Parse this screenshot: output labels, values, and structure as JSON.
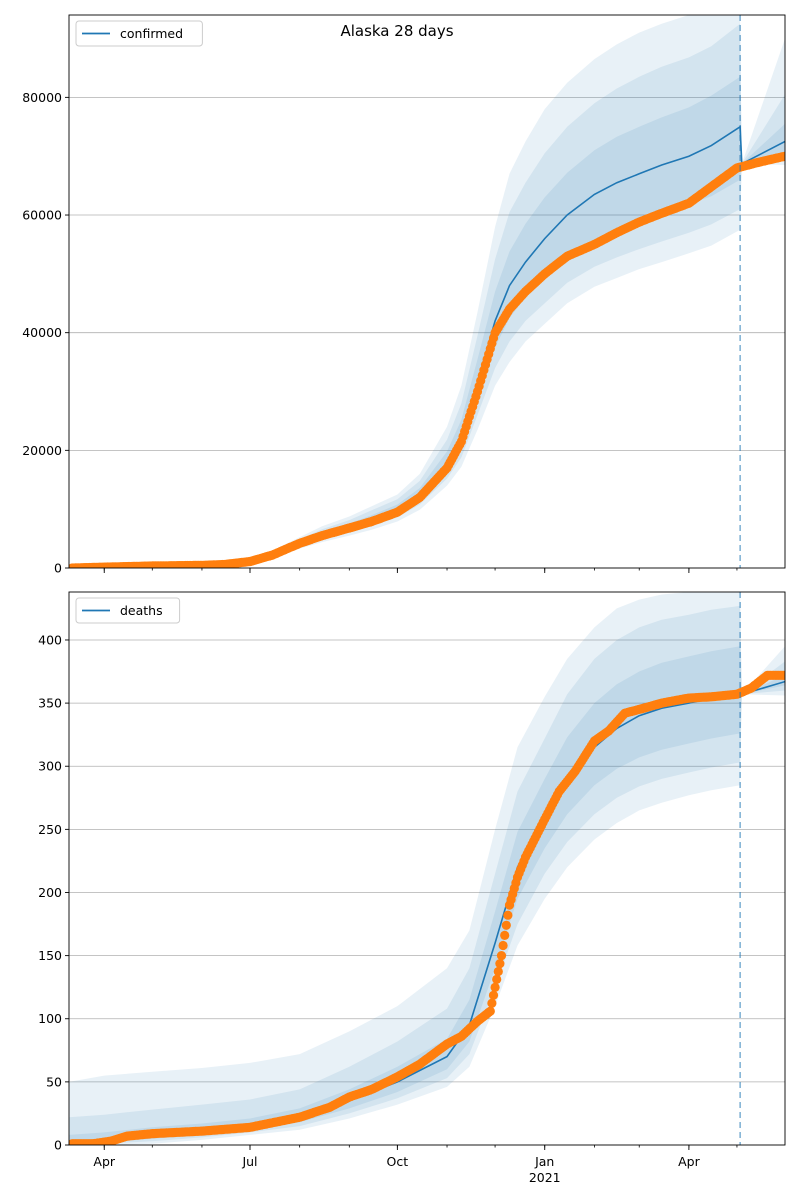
{
  "title": "Alaska 28 days",
  "colors": {
    "model_line": "#1f77b4",
    "observed_points": "#ff7f0e",
    "band": "#1f77b4",
    "grid": "#b0b0b0",
    "forecast_divider": "#1f77b4"
  },
  "chart_data": [
    {
      "type": "line",
      "legend": "confirmed",
      "legend_position": "top-left",
      "grid": "horizontal",
      "xlim": [
        "2020-03-10",
        "2021-05-31"
      ],
      "ylim": [
        0,
        94000
      ],
      "xticks": [
        {
          "date": "2020-04-01",
          "label": "Apr",
          "sub": ""
        },
        {
          "date": "2020-07-01",
          "label": "Jul",
          "sub": ""
        },
        {
          "date": "2020-10-01",
          "label": "Oct",
          "sub": ""
        },
        {
          "date": "2021-01-01",
          "label": "Jan",
          "sub": "2021"
        },
        {
          "date": "2021-04-01",
          "label": "Apr",
          "sub": ""
        }
      ],
      "yticks": [
        {
          "value": 0,
          "label": "0"
        },
        {
          "value": 20000,
          "label": "20000"
        },
        {
          "value": 40000,
          "label": "40000"
        },
        {
          "value": 60000,
          "label": "60000"
        },
        {
          "value": 80000,
          "label": "80000"
        }
      ],
      "forecast_start": "2021-05-03",
      "model": {
        "dates": [
          "2020-03-10",
          "2020-04-01",
          "2020-05-01",
          "2020-06-01",
          "2020-06-15",
          "2020-07-01",
          "2020-07-15",
          "2020-08-01",
          "2020-08-15",
          "2020-09-01",
          "2020-09-15",
          "2020-10-01",
          "2020-10-15",
          "2020-11-01",
          "2020-11-10",
          "2020-11-20",
          "2020-12-01",
          "2020-12-10",
          "2020-12-20",
          "2021-01-01",
          "2021-01-15",
          "2021-02-01",
          "2021-02-15",
          "2021-03-01",
          "2021-03-15",
          "2021-04-01",
          "2021-04-15",
          "2021-05-03",
          "2021-05-04",
          "2021-05-31"
        ],
        "mean": [
          0,
          150,
          300,
          420,
          550,
          1100,
          2200,
          4200,
          5600,
          7000,
          8300,
          10000,
          12500,
          17800,
          22500,
          31500,
          42000,
          48000,
          52000,
          56000,
          60000,
          63500,
          65500,
          67000,
          68500,
          70000,
          71800,
          75000,
          68700,
          72500
        ],
        "lo1": [
          0,
          130,
          270,
          380,
          500,
          1000,
          2000,
          3900,
          5200,
          6500,
          7700,
          9300,
          11600,
          16400,
          20500,
          28500,
          37500,
          42500,
          46000,
          49500,
          53000,
          55800,
          57500,
          59000,
          60300,
          61800,
          63200,
          66000,
          68700,
          70500
        ],
        "hi1": [
          0,
          170,
          330,
          460,
          600,
          1200,
          2450,
          4550,
          6100,
          7550,
          9000,
          10800,
          13600,
          19800,
          25200,
          35500,
          47000,
          53800,
          58500,
          63000,
          67200,
          71000,
          73300,
          75000,
          76600,
          78300,
          80300,
          83500,
          68700,
          75500
        ],
        "lo2": [
          0,
          110,
          240,
          340,
          450,
          900,
          1800,
          3600,
          4800,
          6000,
          7100,
          8600,
          10800,
          15200,
          18800,
          26000,
          34000,
          38500,
          42000,
          45000,
          48500,
          51200,
          52800,
          54200,
          55500,
          57000,
          58400,
          61000,
          68700,
          69200
        ],
        "hi2": [
          0,
          190,
          360,
          500,
          660,
          1300,
          2700,
          4900,
          6600,
          8150,
          9800,
          11700,
          14800,
          21800,
          28000,
          39500,
          52500,
          60500,
          65500,
          70500,
          75000,
          79000,
          81500,
          83500,
          85200,
          86800,
          88700,
          92500,
          68700,
          80500
        ],
        "lo3": [
          0,
          90,
          210,
          300,
          400,
          800,
          1600,
          3300,
          4400,
          5500,
          6500,
          7900,
          9900,
          14000,
          17200,
          23500,
          31000,
          35000,
          38500,
          41500,
          45000,
          47800,
          49300,
          50800,
          52000,
          53500,
          54800,
          57500,
          68700,
          68500
        ],
        "hi3": [
          0,
          210,
          390,
          540,
          720,
          1400,
          2950,
          5250,
          7100,
          8750,
          10500,
          12500,
          16000,
          24000,
          31000,
          43500,
          58000,
          67000,
          72500,
          78000,
          82500,
          86500,
          89000,
          91000,
          92500,
          94000,
          94000,
          94000,
          68700,
          90000
        ]
      },
      "observed": {
        "dates": [
          "2020-03-12",
          "2020-04-01",
          "2020-05-01",
          "2020-06-01",
          "2020-06-15",
          "2020-07-01",
          "2020-07-15",
          "2020-08-01",
          "2020-08-15",
          "2020-09-01",
          "2020-09-15",
          "2020-10-01",
          "2020-10-15",
          "2020-11-01",
          "2020-11-10",
          "2020-11-20",
          "2020-12-01",
          "2020-12-10",
          "2020-12-20",
          "2021-01-01",
          "2021-01-15",
          "2021-02-01",
          "2021-02-15",
          "2021-03-01",
          "2021-03-15",
          "2021-04-01",
          "2021-04-15",
          "2021-05-01",
          "2021-05-15",
          "2021-05-31"
        ],
        "values": [
          0,
          150,
          350,
          450,
          600,
          1100,
          2200,
          4200,
          5500,
          6800,
          7900,
          9500,
          12000,
          17000,
          21500,
          30000,
          40000,
          44000,
          47000,
          50000,
          53000,
          55000,
          57000,
          58800,
          60300,
          62000,
          64800,
          68000,
          69000,
          70000
        ]
      }
    },
    {
      "type": "line",
      "legend": "deaths",
      "legend_position": "top-left",
      "grid": "horizontal",
      "xlim": [
        "2020-03-10",
        "2021-05-31"
      ],
      "ylim": [
        0,
        438
      ],
      "xticks": [
        {
          "date": "2020-04-01",
          "label": "Apr",
          "sub": ""
        },
        {
          "date": "2020-07-01",
          "label": "Jul",
          "sub": ""
        },
        {
          "date": "2020-10-01",
          "label": "Oct",
          "sub": ""
        },
        {
          "date": "2021-01-01",
          "label": "Jan",
          "sub": "2021"
        },
        {
          "date": "2021-04-01",
          "label": "Apr",
          "sub": ""
        }
      ],
      "yticks": [
        {
          "value": 0,
          "label": "0"
        },
        {
          "value": 50,
          "label": "50"
        },
        {
          "value": 100,
          "label": "100"
        },
        {
          "value": 150,
          "label": "150"
        },
        {
          "value": 200,
          "label": "200"
        },
        {
          "value": 250,
          "label": "250"
        },
        {
          "value": 300,
          "label": "300"
        },
        {
          "value": 350,
          "label": "350"
        },
        {
          "value": 400,
          "label": "400"
        }
      ],
      "forecast_start": "2021-05-03",
      "model": {
        "dates": [
          "2020-03-10",
          "2020-04-01",
          "2020-05-01",
          "2020-06-01",
          "2020-07-01",
          "2020-08-01",
          "2020-09-01",
          "2020-10-01",
          "2020-11-01",
          "2020-11-15",
          "2020-12-01",
          "2020-12-15",
          "2021-01-01",
          "2021-01-15",
          "2021-02-01",
          "2021-02-15",
          "2021-03-01",
          "2021-03-15",
          "2021-04-01",
          "2021-04-15",
          "2021-05-03",
          "2021-05-04",
          "2021-05-31"
        ],
        "mean": [
          1,
          4,
          8,
          11,
          15,
          22,
          35,
          50,
          70,
          95,
          160,
          220,
          260,
          290,
          315,
          330,
          340,
          346,
          350,
          354,
          357,
          357,
          367
        ],
        "lo1": [
          0,
          2,
          5,
          8,
          12,
          18,
          29,
          42,
          60,
          82,
          140,
          195,
          235,
          262,
          285,
          298,
          307,
          313,
          318,
          322,
          326,
          357,
          364
        ],
        "hi1": [
          8,
          10,
          14,
          17,
          21,
          29,
          44,
          62,
          84,
          115,
          185,
          248,
          290,
          323,
          350,
          365,
          375,
          382,
          387,
          391,
          395,
          357,
          372
        ],
        "lo2": [
          0,
          1,
          3,
          6,
          10,
          15,
          25,
          37,
          53,
          72,
          125,
          175,
          215,
          240,
          262,
          275,
          284,
          290,
          295,
          299,
          303,
          357,
          360
        ],
        "hi2": [
          22,
          24,
          28,
          32,
          36,
          44,
          62,
          82,
          108,
          140,
          215,
          280,
          322,
          357,
          385,
          400,
          410,
          416,
          420,
          424,
          427,
          357,
          383
        ],
        "lo3": [
          0,
          0,
          1,
          4,
          8,
          12,
          21,
          32,
          46,
          62,
          110,
          158,
          195,
          220,
          242,
          255,
          265,
          271,
          277,
          281,
          285,
          357,
          356
        ],
        "hi3": [
          50,
          55,
          58,
          61,
          65,
          72,
          90,
          110,
          140,
          170,
          250,
          315,
          355,
          385,
          410,
          425,
          432,
          436,
          438,
          438,
          438,
          357,
          395
        ]
      },
      "observed": {
        "dates": [
          "2020-03-12",
          "2020-03-25",
          "2020-04-05",
          "2020-04-15",
          "2020-05-01",
          "2020-06-01",
          "2020-07-01",
          "2020-08-01",
          "2020-08-20",
          "2020-09-01",
          "2020-09-15",
          "2020-10-01",
          "2020-10-15",
          "2020-11-01",
          "2020-11-10",
          "2020-11-20",
          "2020-11-28",
          "2020-12-05",
          "2020-12-10",
          "2020-12-15",
          "2020-12-20",
          "2021-01-01",
          "2021-01-10",
          "2021-01-20",
          "2021-02-01",
          "2021-02-10",
          "2021-02-20",
          "2021-03-01",
          "2021-03-15",
          "2021-04-01",
          "2021-04-15",
          "2021-05-01",
          "2021-05-10",
          "2021-05-20",
          "2021-05-31"
        ],
        "values": [
          1,
          1,
          3,
          7,
          9,
          11,
          14,
          22,
          30,
          38,
          44,
          54,
          64,
          80,
          86,
          98,
          106,
          150,
          190,
          212,
          228,
          258,
          280,
          296,
          320,
          328,
          342,
          345,
          350,
          354,
          355,
          357,
          362,
          372,
          372
        ]
      }
    }
  ]
}
